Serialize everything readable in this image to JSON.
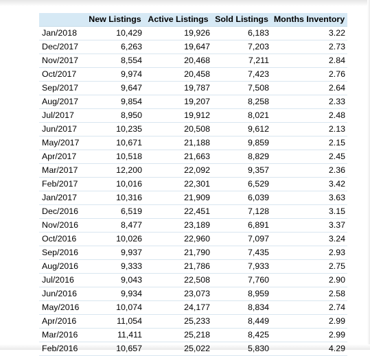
{
  "chart_data": {
    "type": "table",
    "columns": [
      "",
      "New Listings",
      "Active Listings",
      "Sold Listings",
      "Months Inventory"
    ],
    "rows": [
      {
        "month": "Jan/2018",
        "new": "10,429",
        "active": "19,926",
        "sold": "6,183",
        "inventory": "3.22"
      },
      {
        "month": "Dec/2017",
        "new": "6,263",
        "active": "19,647",
        "sold": "7,203",
        "inventory": "2.73"
      },
      {
        "month": "Nov/2017",
        "new": "8,554",
        "active": "20,468",
        "sold": "7,211",
        "inventory": "2.84"
      },
      {
        "month": "Oct/2017",
        "new": "9,974",
        "active": "20,458",
        "sold": "7,423",
        "inventory": "2.76"
      },
      {
        "month": "Sep/2017",
        "new": "9,647",
        "active": "19,787",
        "sold": "7,508",
        "inventory": "2.64"
      },
      {
        "month": "Aug/2017",
        "new": "9,854",
        "active": "19,207",
        "sold": "8,258",
        "inventory": "2.33"
      },
      {
        "month": "Jul/2017",
        "new": "8,950",
        "active": "19,912",
        "sold": "8,021",
        "inventory": "2.48"
      },
      {
        "month": "Jun/2017",
        "new": "10,235",
        "active": "20,508",
        "sold": "9,612",
        "inventory": "2.13"
      },
      {
        "month": "May/2017",
        "new": "10,671",
        "active": "21,188",
        "sold": "9,859",
        "inventory": "2.15"
      },
      {
        "month": "Apr/2017",
        "new": "10,518",
        "active": "21,663",
        "sold": "8,829",
        "inventory": "2.45"
      },
      {
        "month": "Mar/2017",
        "new": "12,200",
        "active": "22,092",
        "sold": "9,357",
        "inventory": "2.36"
      },
      {
        "month": "Feb/2017",
        "new": "10,016",
        "active": "22,301",
        "sold": "6,529",
        "inventory": "3.42"
      },
      {
        "month": "Jan/2017",
        "new": "10,316",
        "active": "21,909",
        "sold": "6,039",
        "inventory": "3.63"
      },
      {
        "month": "Dec/2016",
        "new": "6,519",
        "active": "22,451",
        "sold": "7,128",
        "inventory": "3.15"
      },
      {
        "month": "Nov/2016",
        "new": "8,477",
        "active": "23,189",
        "sold": "6,891",
        "inventory": "3.37"
      },
      {
        "month": "Oct/2016",
        "new": "10,026",
        "active": "22,960",
        "sold": "7,097",
        "inventory": "3.24"
      },
      {
        "month": "Sep/2016",
        "new": "9,937",
        "active": "21,790",
        "sold": "7,435",
        "inventory": "2.93"
      },
      {
        "month": "Aug/2016",
        "new": "9,333",
        "active": "21,786",
        "sold": "7,933",
        "inventory": "2.75"
      },
      {
        "month": "Jul/2016",
        "new": "9,043",
        "active": "22,508",
        "sold": "7,760",
        "inventory": "2.90"
      },
      {
        "month": "Jun/2016",
        "new": "9,934",
        "active": "23,073",
        "sold": "8,959",
        "inventory": "2.58"
      },
      {
        "month": "May/2016",
        "new": "10,074",
        "active": "24,177",
        "sold": "8,834",
        "inventory": "2.74"
      },
      {
        "month": "Apr/2016",
        "new": "11,054",
        "active": "25,233",
        "sold": "8,449",
        "inventory": "2.99"
      },
      {
        "month": "Mar/2016",
        "new": "11,411",
        "active": "25,218",
        "sold": "8,425",
        "inventory": "2.99"
      },
      {
        "month": "Feb/2016",
        "new": "10,657",
        "active": "25,022",
        "sold": "5,830",
        "inventory": "4.29"
      }
    ],
    "header_color": "#d6e9f5"
  }
}
